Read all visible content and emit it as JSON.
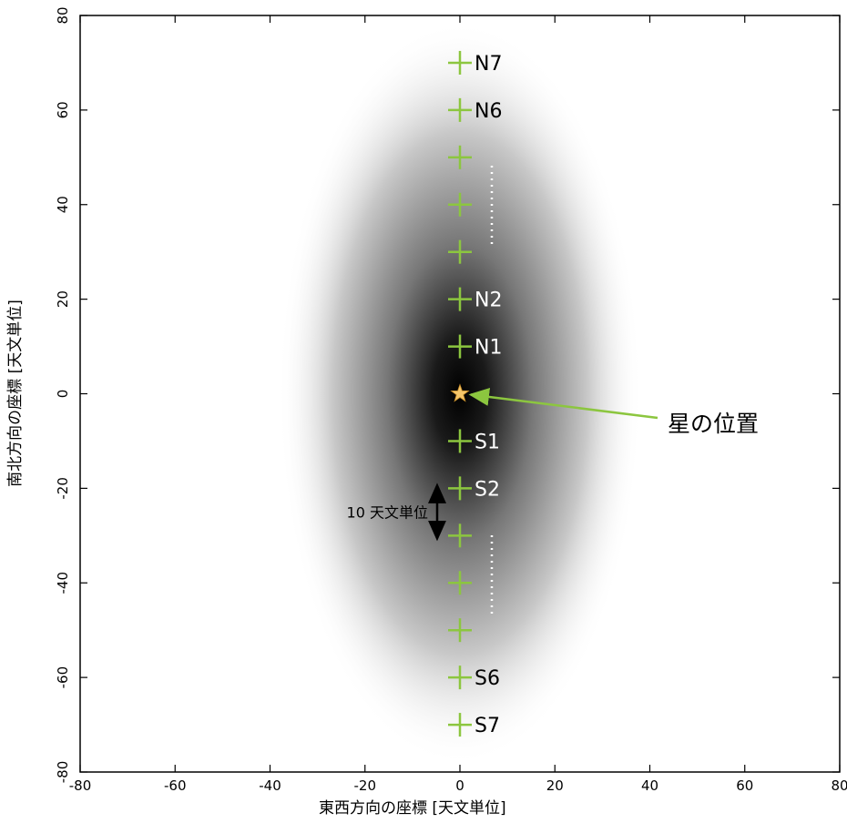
{
  "chart_data": {
    "type": "scatter",
    "xlabel": "東西方向の座標 [天文単位]",
    "ylabel": "南北方向の座標 [天文単位]",
    "xlim": [
      -80,
      80
    ],
    "ylim": [
      -80,
      80
    ],
    "xticks": [
      -80,
      -60,
      -40,
      -20,
      0,
      20,
      40,
      60,
      80
    ],
    "yticks": [
      -80,
      -60,
      -40,
      -20,
      0,
      20,
      40,
      60,
      80
    ],
    "series": [
      {
        "color": "#8cc63f",
        "x": [
          0,
          0,
          0,
          0,
          0,
          0,
          0,
          0,
          0,
          0,
          0,
          0,
          0,
          0
        ],
        "values": [
          70,
          60,
          50,
          40,
          30,
          20,
          10,
          -10,
          -20,
          -30,
          -40,
          -50,
          -60,
          -70
        ],
        "point_labels": [
          "N7",
          "N6",
          null,
          null,
          null,
          "N2",
          "N1",
          "S1",
          "S2",
          null,
          null,
          null,
          "S6",
          "S7"
        ]
      }
    ],
    "star": {
      "x": 0,
      "y": 0,
      "color": "#f5c66a",
      "label": "星の位置"
    },
    "scale_bar": {
      "label": "10 天文単位",
      "y_start": -20,
      "y_end": -30
    }
  }
}
